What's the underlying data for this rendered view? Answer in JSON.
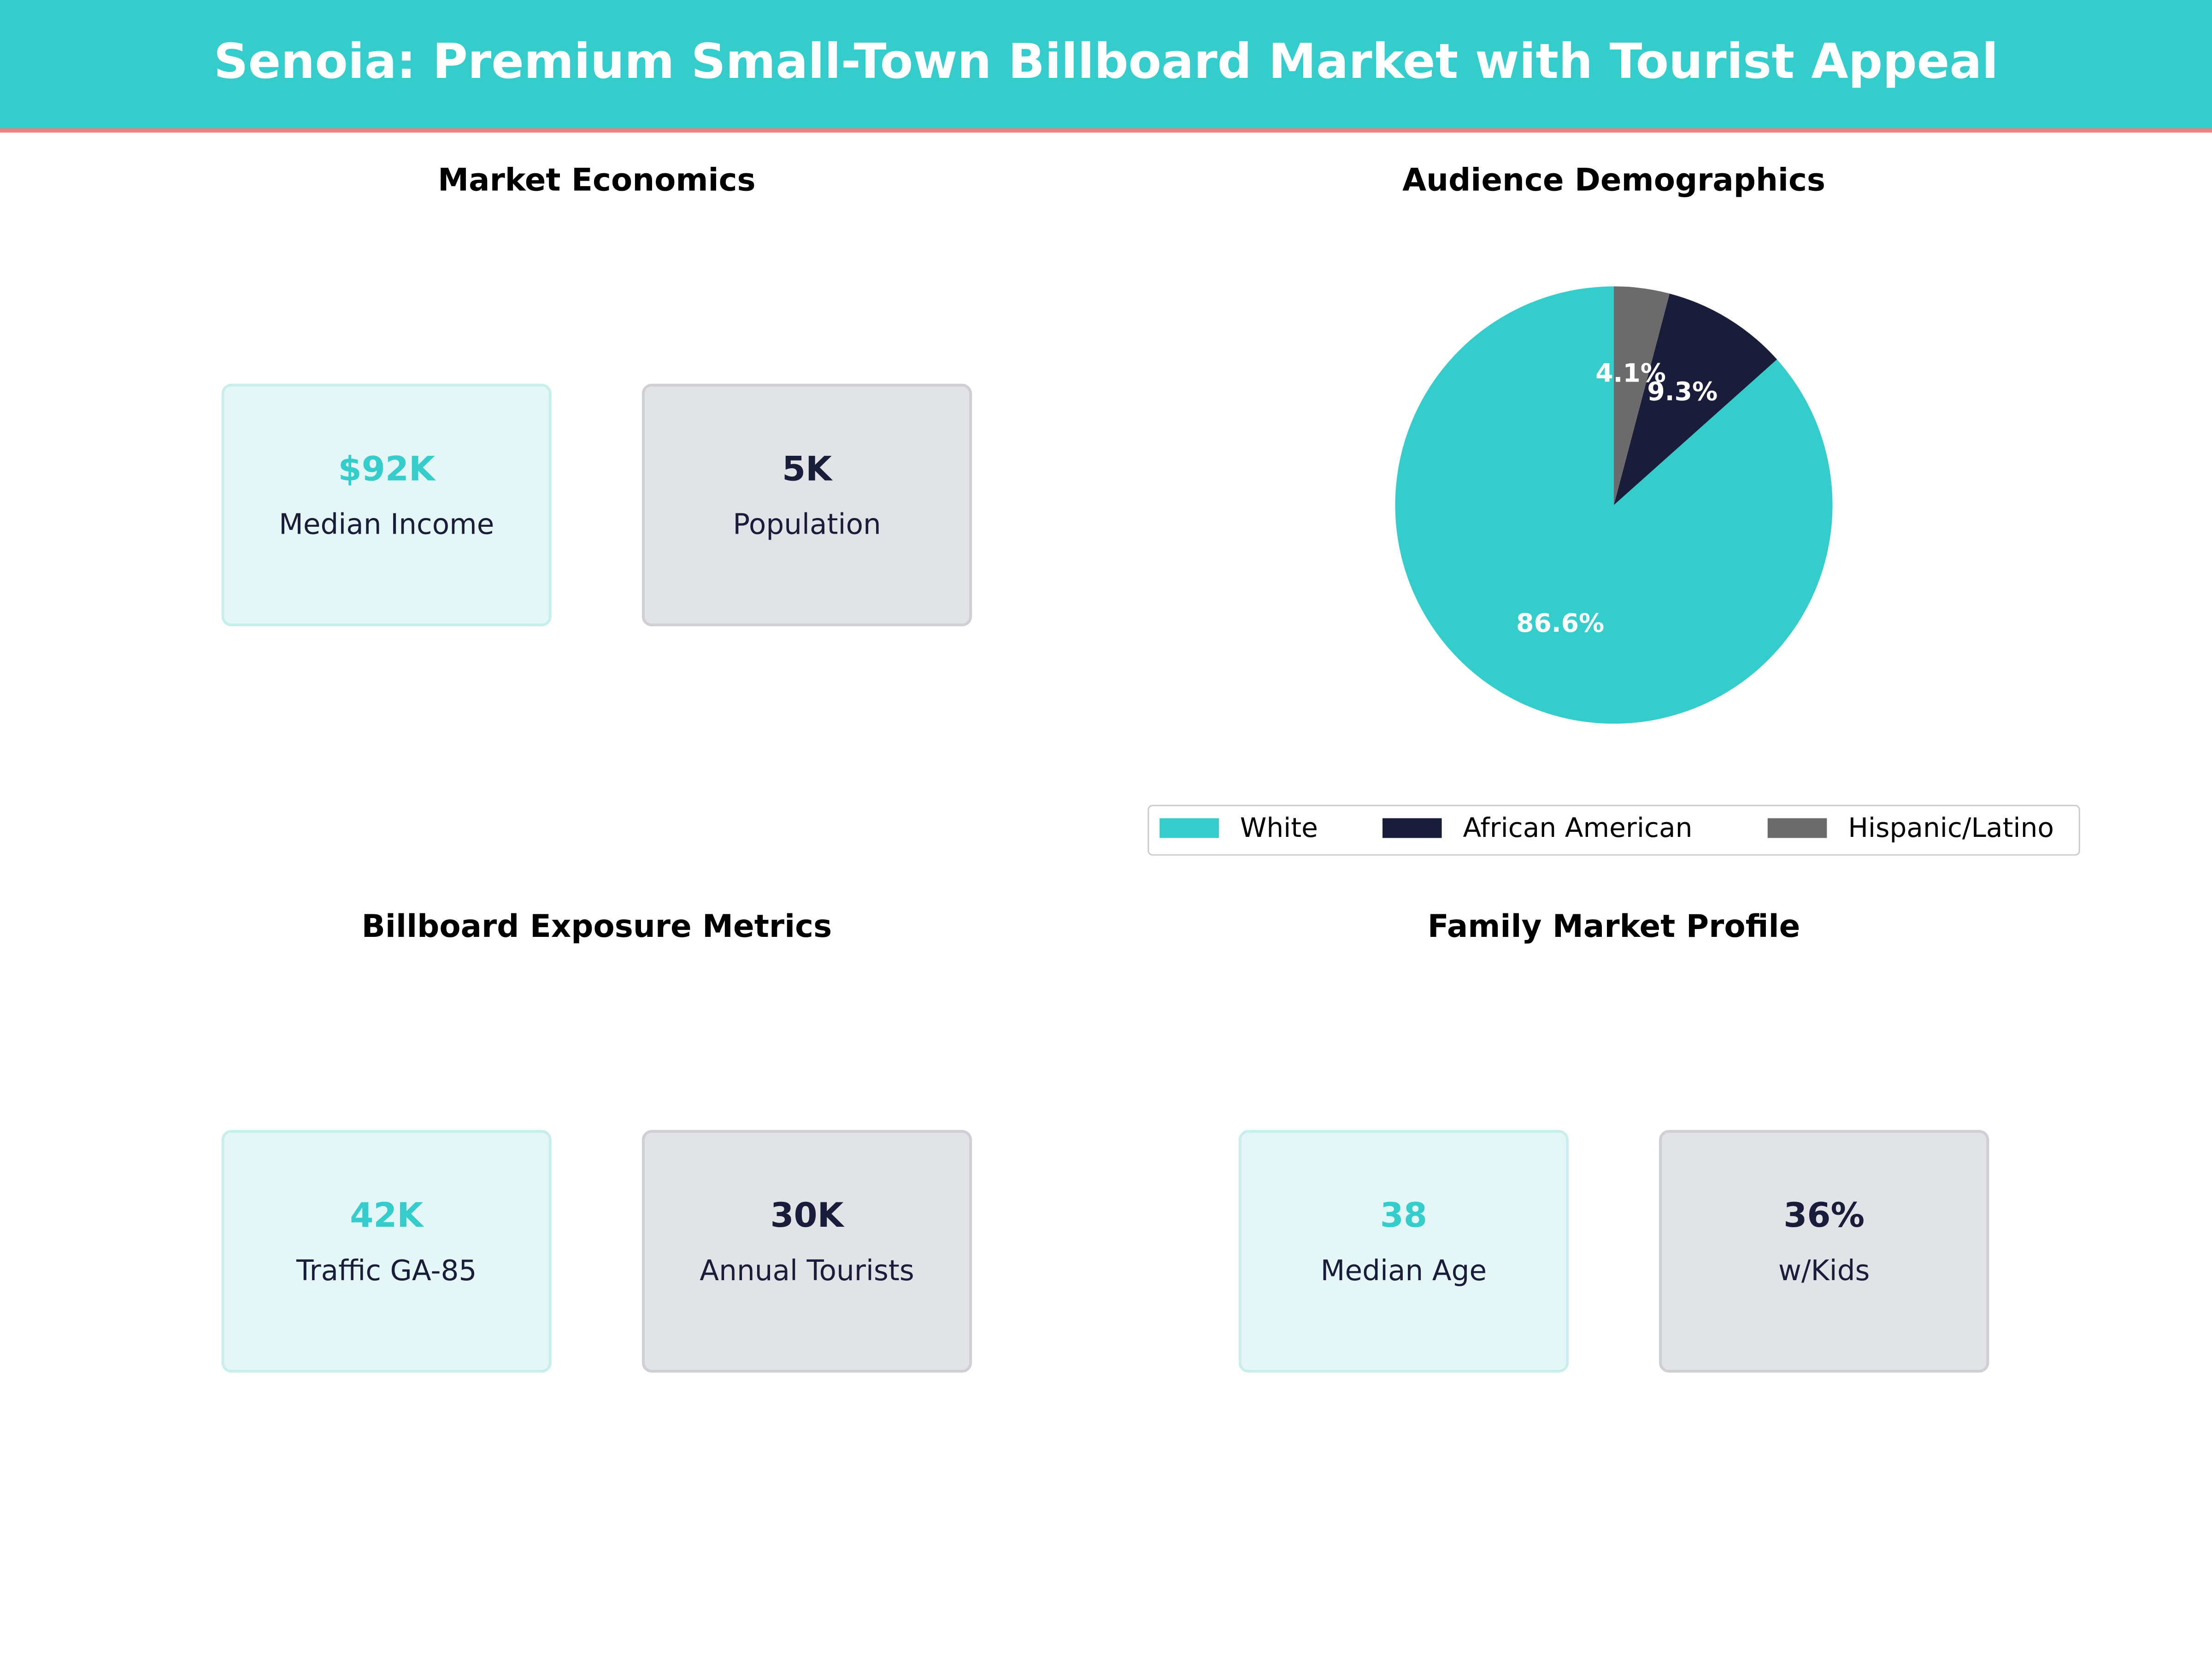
{
  "header": {
    "title": "Senoia: Premium Small-Town Billboard Market with Tourist Appeal"
  },
  "panels": [
    {
      "title": "Market Economics",
      "cards": [
        {
          "value": "$92K",
          "label": "Median Income"
        },
        {
          "value": "5K",
          "label": "Population"
        }
      ]
    },
    {
      "title": "Billboard Exposure Metrics",
      "cards": [
        {
          "value": "42K",
          "label": "Traffic GA-85"
        },
        {
          "value": "30K",
          "label": "Annual Tourists"
        }
      ]
    },
    {
      "title": "Family Market Profile",
      "cards": [
        {
          "value": "38",
          "label": "Median Age"
        },
        {
          "value": "36%",
          "label": "w/Kids"
        }
      ]
    }
  ],
  "chart_data": {
    "type": "pie",
    "title": "Audience Demographics",
    "categories": [
      "White",
      "African American",
      "Hispanic/Latino"
    ],
    "values": [
      86.6,
      9.3,
      4.1
    ],
    "value_labels": [
      "86.6%",
      "9.3%",
      "4.1%"
    ],
    "colors": [
      "#35cccc",
      "#1a1d3a",
      "#6b6b6b"
    ],
    "legend": "bottom"
  }
}
